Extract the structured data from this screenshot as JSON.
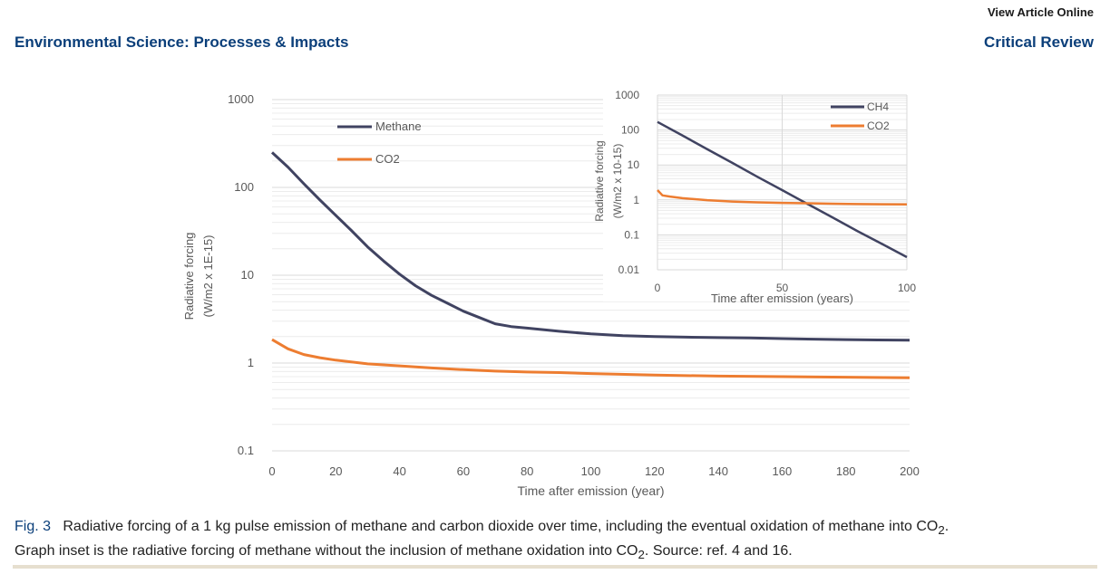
{
  "header": {
    "view_online": "View Article Online",
    "journal": "Environmental Science: Processes & Impacts",
    "section": "Critical Review"
  },
  "caption": {
    "fig_label": "Fig. 3",
    "line1_a": "Radiative forcing of a 1 kg pulse emission of methane and carbon dioxide over time, including the eventual oxidation of methane into CO",
    "line2_a": "Graph inset is the radiative forcing of methane without the inclusion of methane oxidation into CO",
    "line2_b": ". Source: ref. 4 and 16.",
    "subscript": "2",
    "period": "."
  },
  "colors": {
    "methane": "#404361",
    "co2": "#ed7d31",
    "grid": "#d9d9d9",
    "axis_text": "#595959"
  },
  "chart_data": [
    {
      "type": "line",
      "log_y": true,
      "grid": true,
      "legend_position": "top-left",
      "xlabel": "Time after emission (year)",
      "ylabel": "Radiative forcing\n(W/m2 x 1E-15)",
      "xlim": [
        0,
        200
      ],
      "ylim": [
        0.1,
        1000
      ],
      "x_ticks": [
        0,
        20,
        40,
        60,
        80,
        100,
        120,
        140,
        160,
        180,
        200
      ],
      "y_ticks": [
        {
          "value": 0.1,
          "label": "0.1"
        },
        {
          "value": 1,
          "label": "1"
        },
        {
          "value": 10,
          "label": "10"
        },
        {
          "value": 100,
          "label": "100"
        },
        {
          "value": 1000,
          "label": "1000"
        }
      ],
      "series": [
        {
          "name": "Methane",
          "color": "#404361",
          "x": [
            0,
            5,
            10,
            15,
            20,
            25,
            30,
            35,
            40,
            45,
            50,
            55,
            60,
            65,
            70,
            75,
            80,
            90,
            100,
            110,
            120,
            130,
            140,
            150,
            160,
            170,
            180,
            190,
            200
          ],
          "y": [
            250,
            170,
            110,
            72,
            48,
            32,
            21,
            14.5,
            10.3,
            7.6,
            5.9,
            4.8,
            3.9,
            3.3,
            2.8,
            2.6,
            2.5,
            2.3,
            2.15,
            2.05,
            2.0,
            1.97,
            1.95,
            1.93,
            1.9,
            1.87,
            1.85,
            1.83,
            1.82
          ]
        },
        {
          "name": "CO2",
          "color": "#ed7d31",
          "x": [
            0,
            5,
            10,
            15,
            20,
            30,
            40,
            50,
            60,
            70,
            80,
            90,
            100,
            120,
            140,
            160,
            180,
            200
          ],
          "y": [
            1.85,
            1.45,
            1.25,
            1.15,
            1.08,
            0.98,
            0.93,
            0.88,
            0.84,
            0.81,
            0.79,
            0.78,
            0.76,
            0.73,
            0.71,
            0.7,
            0.69,
            0.68
          ]
        }
      ]
    },
    {
      "type": "line",
      "inset": true,
      "log_y": true,
      "grid": true,
      "legend_position": "top-right",
      "xlabel": "Time after emission (years)",
      "ylabel": "Radiative forcing\n(W/m2 x 10-15)",
      "xlim": [
        0,
        100
      ],
      "ylim": [
        0.01,
        1000
      ],
      "x_ticks": [
        0,
        50,
        100
      ],
      "y_ticks": [
        {
          "value": 0.01,
          "label": "0.01"
        },
        {
          "value": 0.1,
          "label": "0.1"
        },
        {
          "value": 1,
          "label": "1"
        },
        {
          "value": 10,
          "label": "10"
        },
        {
          "value": 100,
          "label": "100"
        },
        {
          "value": 1000,
          "label": "1000"
        }
      ],
      "series": [
        {
          "name": "CH4",
          "color": "#404361",
          "x": [
            0,
            10,
            20,
            30,
            40,
            50,
            60,
            70,
            80,
            90,
            100
          ],
          "y": [
            170,
            70,
            28,
            11.5,
            4.6,
            1.9,
            0.78,
            0.32,
            0.13,
            0.055,
            0.023
          ]
        },
        {
          "name": "CO2",
          "color": "#ed7d31",
          "x": [
            0,
            2,
            5,
            10,
            20,
            30,
            40,
            50,
            60,
            70,
            80,
            90,
            100
          ],
          "y": [
            1.9,
            1.35,
            1.25,
            1.12,
            0.98,
            0.9,
            0.85,
            0.82,
            0.8,
            0.78,
            0.76,
            0.75,
            0.74
          ]
        }
      ]
    }
  ]
}
